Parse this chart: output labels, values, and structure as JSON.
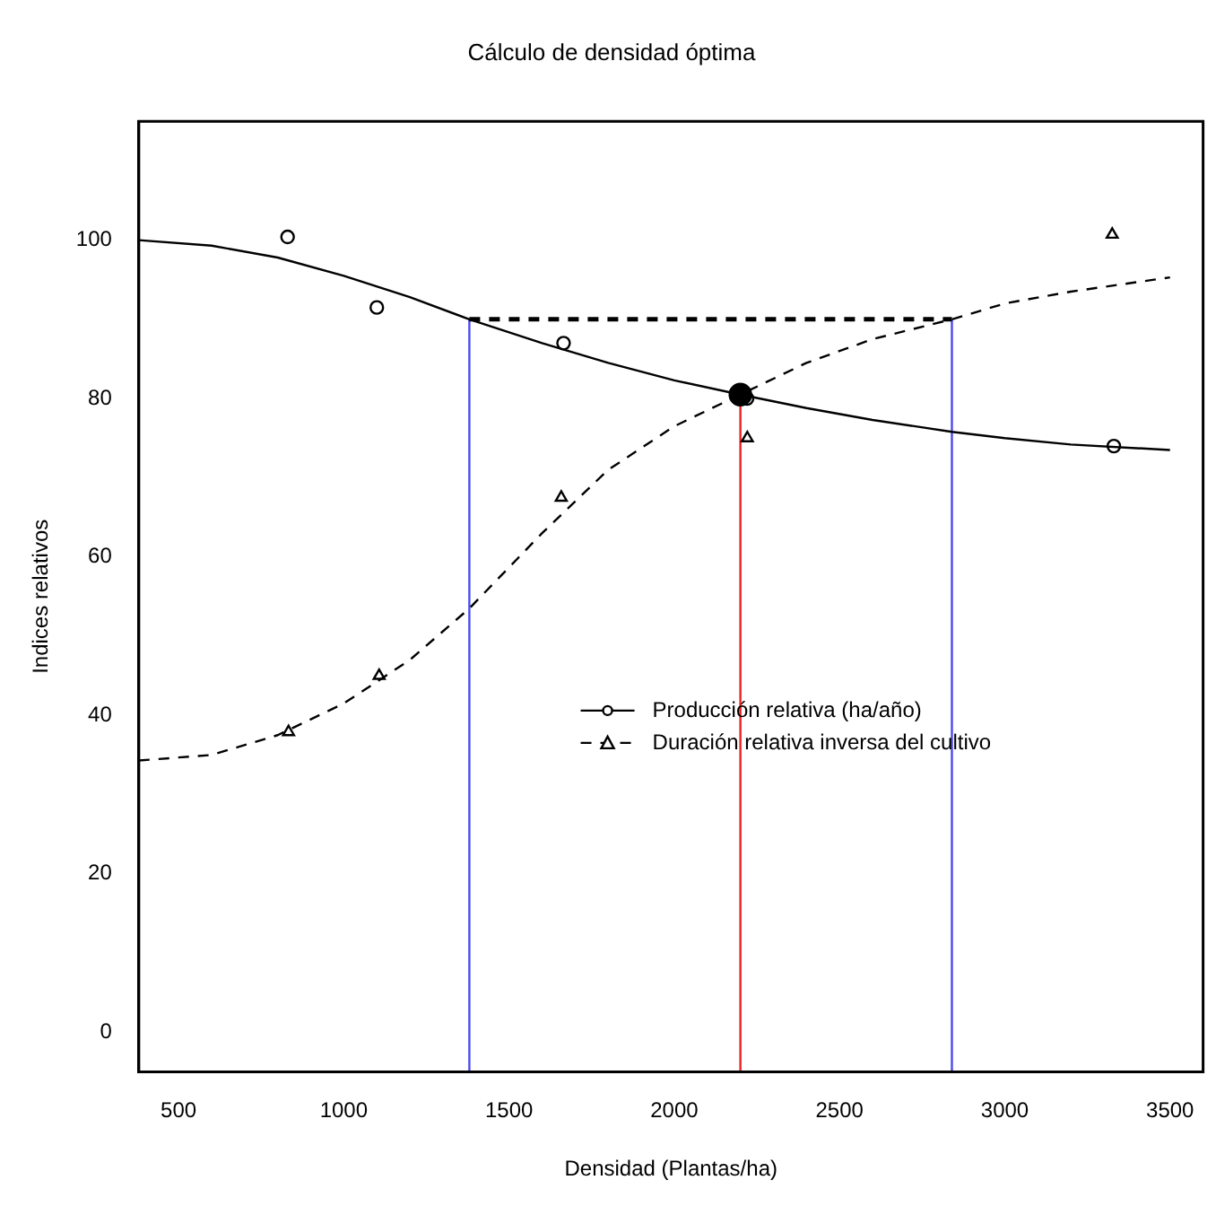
{
  "chart_data": {
    "type": "line",
    "title": "Cálculo de densidad óptima",
    "xlabel": "Densidad (Plantas/ha)",
    "ylabel": "Indices relativos",
    "xlim": [
      380,
      3600
    ],
    "xticks": [
      500,
      1000,
      1500,
      2000,
      2500,
      3000,
      3500
    ],
    "ylim": [
      -5,
      115
    ],
    "yticks": [
      0,
      20,
      40,
      60,
      80,
      100
    ],
    "grid": false,
    "legend": "center",
    "series": [
      {
        "name": "Producción relativa (ha/año)",
        "type": "scatter",
        "marker": "circle",
        "line_style": "solid",
        "color": "#000000",
        "x": [
          830,
          1100,
          1665,
          2220,
          3330
        ],
        "values": [
          100.4,
          91.5,
          87,
          80,
          74
        ]
      },
      {
        "name": "Duración relativa inversa del cultivo",
        "type": "scatter",
        "marker": "triangle",
        "line_style": "dashed",
        "color": "#000000",
        "x": [
          833,
          1107,
          1658,
          2221,
          3325
        ],
        "values": [
          37.9,
          45,
          67.5,
          75,
          100.7
        ]
      },
      {
        "line_style": "solid",
        "color": "#000000",
        "x": [
          380,
          600,
          800,
          1000,
          1200,
          1380,
          1600,
          1800,
          2000,
          2200,
          2400,
          2600,
          2840,
          3000,
          3200,
          3500
        ],
        "values": [
          100,
          99.3,
          97.8,
          95.5,
          92.8,
          90,
          87,
          84.5,
          82.3,
          80.5,
          78.8,
          77.3,
          75.8,
          75,
          74.2,
          73.5
        ]
      },
      {
        "line_style": "dashed",
        "color": "#000000",
        "x": [
          380,
          600,
          800,
          1000,
          1200,
          1380,
          1600,
          1800,
          2000,
          2200,
          2400,
          2600,
          2840,
          3000,
          3200,
          3500
        ],
        "values": [
          34.3,
          35,
          37.5,
          41.5,
          47,
          53.5,
          63,
          71,
          76.5,
          80.5,
          84.5,
          87.5,
          90,
          92,
          93.5,
          95.3
        ]
      },
      {
        "line_style": "dashed",
        "color": "#000000",
        "x": [
          1380,
          2840
        ],
        "values": [
          90,
          90
        ]
      },
      {
        "line_style": "solid",
        "color": "#4a4af0",
        "x": [
          1380,
          1380
        ],
        "values": [
          -5,
          90
        ]
      },
      {
        "line_style": "solid",
        "color": "#4a4af0",
        "x": [
          2840,
          2840
        ],
        "values": [
          -5,
          90
        ]
      },
      {
        "line_style": "solid",
        "color": "#f02020",
        "x": [
          2200,
          2200
        ],
        "values": [
          -5,
          80.5
        ]
      },
      {
        "type": "scatter",
        "marker": "circle",
        "color": "#000000",
        "x": [
          2200
        ],
        "values": [
          80.5
        ]
      }
    ]
  }
}
